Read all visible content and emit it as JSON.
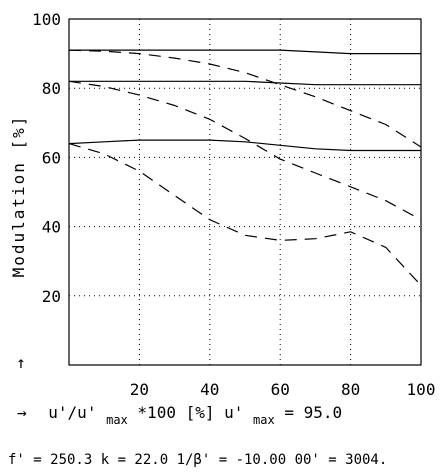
{
  "chart_data": {
    "type": "line",
    "xlabel": {
      "arrow": "→",
      "main": "u'/u'",
      "sub": "max",
      "rest": " *100  [%]  u'",
      "sub2": "max",
      "rest2": " = 95.0"
    },
    "ylabel": "Modulation [%]",
    "y_arrow": "↑",
    "xlim": [
      0,
      100
    ],
    "ylim": [
      0,
      100
    ],
    "x_ticks": [
      20,
      40,
      60,
      80,
      100
    ],
    "y_ticks": [
      20,
      40,
      60,
      80,
      100
    ],
    "grid": true,
    "footer": "f' = 250.3   k = 22.0  1/β' = -10.00   00' = 3004.",
    "series": [
      {
        "style": "solid",
        "x": [
          0,
          10,
          20,
          30,
          40,
          50,
          60,
          70,
          80,
          90,
          100
        ],
        "y": [
          91,
          91,
          91,
          91,
          91,
          91,
          91,
          90.5,
          90,
          90,
          90
        ]
      },
      {
        "style": "dashed",
        "x": [
          0,
          10,
          20,
          30,
          40,
          50,
          60,
          70,
          80,
          90,
          100
        ],
        "y": [
          91,
          90.7,
          90,
          88.7,
          87,
          84.5,
          81,
          77.5,
          73.5,
          69.5,
          63
        ]
      },
      {
        "style": "solid",
        "x": [
          0,
          10,
          20,
          30,
          40,
          50,
          60,
          70,
          80,
          90,
          100
        ],
        "y": [
          82,
          82,
          82,
          82,
          82,
          82,
          81.5,
          81,
          81,
          81,
          81
        ]
      },
      {
        "style": "dashed",
        "x": [
          0,
          10,
          20,
          30,
          40,
          50,
          60,
          70,
          80,
          90,
          100
        ],
        "y": [
          82,
          80.5,
          78,
          75,
          71,
          65.5,
          59.5,
          55.5,
          51.5,
          47.5,
          42
        ]
      },
      {
        "style": "solid",
        "x": [
          0,
          10,
          20,
          30,
          40,
          50,
          60,
          70,
          80,
          90,
          100
        ],
        "y": [
          64,
          64.5,
          65,
          65,
          65,
          64.5,
          63.5,
          62.5,
          62,
          62,
          62
        ]
      },
      {
        "style": "dashed",
        "x": [
          0,
          10,
          20,
          30,
          40,
          50,
          60,
          70,
          80,
          90,
          100
        ],
        "y": [
          64,
          61,
          56,
          49,
          42,
          37.5,
          36,
          36.5,
          38.5,
          34,
          23
        ]
      }
    ]
  }
}
